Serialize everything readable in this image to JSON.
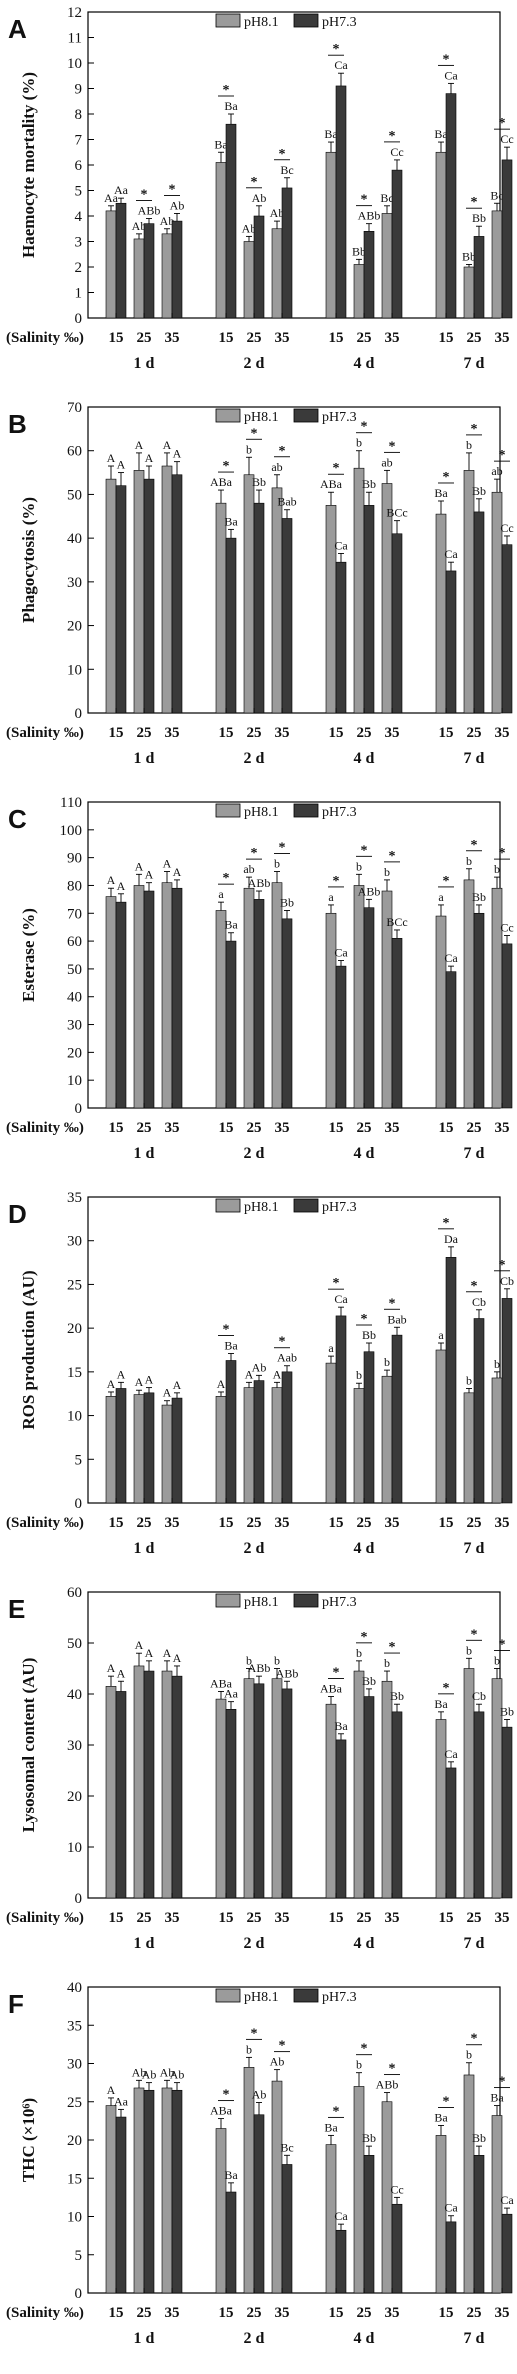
{
  "colors": {
    "ph81": "#9b9b9b",
    "ph73": "#3a3a3a"
  },
  "chart_data": [
    {
      "type": "bar",
      "panel": "A",
      "ylabel": "Haemocyte mortality (%)",
      "ylim": [
        0,
        12
      ],
      "yticks": [
        0,
        1,
        2,
        3,
        4,
        5,
        6,
        7,
        8,
        9,
        10,
        11,
        12
      ],
      "legend": [
        "pH8.1",
        "pH7.3"
      ],
      "legend_position": "top-center",
      "xlabel_prefix": "(Salinity ‰)",
      "salinities": [
        "15",
        "25",
        "35"
      ],
      "days": [
        "1 d",
        "2 d",
        "4 d",
        "7 d"
      ],
      "series": [
        {
          "name": "pH8.1",
          "values": [
            4.2,
            3.1,
            3.3,
            6.1,
            3.0,
            3.5,
            6.5,
            2.1,
            4.1,
            6.5,
            2.0,
            4.2
          ],
          "err": [
            0.2,
            0.2,
            0.2,
            0.4,
            0.2,
            0.3,
            0.4,
            0.2,
            0.3,
            0.4,
            0.1,
            0.3
          ],
          "labels": [
            "Aa",
            "Ab",
            "Ab",
            "Ba",
            "Ab",
            "Ab",
            "Ba",
            "Bb",
            "Bc",
            "Ba",
            "Bb",
            "Bc"
          ]
        },
        {
          "name": "pH7.3",
          "values": [
            4.5,
            3.7,
            3.8,
            7.6,
            4.0,
            5.1,
            9.1,
            3.4,
            5.8,
            8.8,
            3.2,
            6.2
          ],
          "err": [
            0.2,
            0.2,
            0.3,
            0.4,
            0.4,
            0.4,
            0.5,
            0.3,
            0.4,
            0.4,
            0.4,
            0.5
          ],
          "labels": [
            "Aa",
            "ABb",
            "Ab",
            "Ba",
            "Ab",
            "Bc",
            "Ca",
            "ABb",
            "Cc",
            "Ca",
            "Bb",
            "Cc"
          ]
        }
      ],
      "stars": [
        false,
        true,
        true,
        true,
        true,
        true,
        true,
        true,
        true,
        true,
        true,
        true
      ]
    },
    {
      "type": "bar",
      "panel": "B",
      "ylabel": "Phagocytosis (%)",
      "ylim": [
        0,
        70
      ],
      "yticks": [
        0,
        10,
        20,
        30,
        40,
        50,
        60,
        70
      ],
      "legend": [
        "pH8.1",
        "pH7.3"
      ],
      "legend_position": "top-center",
      "xlabel_prefix": "(Salinity ‰)",
      "salinities": [
        "15",
        "25",
        "35"
      ],
      "days": [
        "1 d",
        "2 d",
        "4 d",
        "7 d"
      ],
      "series": [
        {
          "name": "pH8.1",
          "values": [
            53.5,
            55.5,
            56.5,
            48,
            54.5,
            51.5,
            47.5,
            56,
            52.5,
            45.5,
            55.5,
            50.5
          ],
          "err": [
            3,
            4,
            3,
            3,
            4,
            3,
            3,
            4,
            3,
            3,
            4,
            3
          ],
          "labels": [
            "A",
            "A",
            "A",
            "ABa",
            "b",
            "ab",
            "ABa",
            "b",
            "ab",
            "Ba",
            "b",
            "ab"
          ]
        },
        {
          "name": "pH7.3",
          "values": [
            52,
            53.5,
            54.5,
            40,
            48,
            44.5,
            34.5,
            47.5,
            41,
            32.5,
            46,
            38.5
          ],
          "err": [
            3,
            3,
            3,
            2,
            3,
            2,
            2,
            3,
            3,
            2,
            3,
            2
          ],
          "labels": [
            "A",
            "A",
            "A",
            "Ba",
            "Bb",
            "Bab",
            "Ca",
            "Bb",
            "BCc",
            "Ca",
            "Bb",
            "Cc"
          ]
        }
      ],
      "stars": [
        false,
        false,
        false,
        true,
        true,
        true,
        true,
        true,
        true,
        true,
        true,
        true
      ]
    },
    {
      "type": "bar",
      "panel": "C",
      "ylabel": "Esterase (%)",
      "ylim": [
        0,
        110
      ],
      "yticks": [
        0,
        10,
        20,
        30,
        40,
        50,
        60,
        70,
        80,
        90,
        100,
        110
      ],
      "legend": [
        "pH8.1",
        "pH7.3"
      ],
      "legend_position": "top-center",
      "xlabel_prefix": "(Salinity ‰)",
      "salinities": [
        "15",
        "25",
        "35"
      ],
      "days": [
        "1 d",
        "2 d",
        "4 d",
        "7 d"
      ],
      "series": [
        {
          "name": "pH8.1",
          "values": [
            76,
            80,
            81,
            71,
            79,
            81,
            70,
            80,
            78,
            69,
            82,
            79
          ],
          "err": [
            3,
            4,
            4,
            3,
            4,
            4,
            3,
            4,
            4,
            4,
            4,
            4
          ],
          "labels": [
            "A",
            "A",
            "A",
            "a",
            "ab",
            "b",
            "a",
            "b",
            "b",
            "a",
            "b",
            "b"
          ]
        },
        {
          "name": "pH7.3",
          "values": [
            74,
            78,
            79,
            60,
            75,
            68,
            51,
            72,
            61,
            49,
            70,
            59
          ],
          "err": [
            3,
            3,
            3,
            3,
            3,
            3,
            2,
            3,
            3,
            2,
            3,
            3
          ],
          "labels": [
            "A",
            "A",
            "A",
            "Ba",
            "ABb",
            "Bb",
            "Ca",
            "ABb",
            "BCc",
            "Ca",
            "Bb",
            "Cc"
          ]
        }
      ],
      "stars": [
        false,
        false,
        false,
        true,
        true,
        true,
        true,
        true,
        true,
        true,
        true,
        true
      ]
    },
    {
      "type": "bar",
      "panel": "D",
      "ylabel": "ROS production (AU)",
      "ylim": [
        0,
        35
      ],
      "yticks": [
        0,
        5,
        10,
        15,
        20,
        25,
        30,
        35
      ],
      "legend": [
        "pH8.1",
        "pH7.3"
      ],
      "legend_position": "top-center",
      "xlabel_prefix": "(Salinity ‰)",
      "salinities": [
        "15",
        "25",
        "35"
      ],
      "days": [
        "1 d",
        "2 d",
        "4 d",
        "7 d"
      ],
      "series": [
        {
          "name": "pH8.1",
          "values": [
            12.2,
            12.4,
            11.2,
            12.2,
            13.2,
            13.2,
            16,
            13.1,
            14.5,
            17.5,
            12.6,
            14.3
          ],
          "err": [
            0.5,
            0.5,
            0.5,
            0.5,
            0.6,
            0.6,
            0.8,
            0.6,
            0.7,
            0.8,
            0.5,
            0.7
          ],
          "labels": [
            "A",
            "A",
            "A",
            "A",
            "A",
            "A",
            "a",
            "b",
            "b",
            "a",
            "b",
            "b"
          ]
        },
        {
          "name": "pH7.3",
          "values": [
            13.1,
            12.6,
            12.0,
            16.3,
            14.0,
            15.0,
            21.4,
            17.3,
            19.2,
            28.1,
            21.1,
            23.4
          ],
          "err": [
            0.7,
            0.6,
            0.6,
            0.8,
            0.6,
            0.7,
            1.0,
            1.0,
            0.9,
            1.2,
            1.0,
            1.1
          ],
          "labels": [
            "A",
            "A",
            "A",
            "Ba",
            "Ab",
            "Aab",
            "Ca",
            "Bb",
            "Bab",
            "Da",
            "Cb",
            "Cb"
          ]
        }
      ],
      "stars": [
        false,
        false,
        false,
        true,
        false,
        true,
        true,
        true,
        true,
        true,
        true,
        true
      ]
    },
    {
      "type": "bar",
      "panel": "E",
      "ylabel": "Lysosomal content (AU)",
      "ylim": [
        0,
        60
      ],
      "yticks": [
        0,
        10,
        20,
        30,
        40,
        50,
        60
      ],
      "legend": [
        "pH8.1",
        "pH7.3"
      ],
      "legend_position": "top-center",
      "xlabel_prefix": "(Salinity ‰)",
      "salinities": [
        "15",
        "25",
        "35"
      ],
      "days": [
        "1 d",
        "2 d",
        "4 d",
        "7 d"
      ],
      "series": [
        {
          "name": "pH8.1",
          "values": [
            41.5,
            45.5,
            44.5,
            39,
            43,
            43,
            38,
            44.5,
            42.5,
            35,
            45,
            43
          ],
          "err": [
            2,
            2.5,
            2,
            1.5,
            2,
            2,
            1.5,
            2,
            2,
            1.5,
            2,
            2
          ],
          "labels": [
            "A",
            "A",
            "A",
            "ABa",
            "b",
            "b",
            "ABa",
            "b",
            "b",
            "Ba",
            "b",
            "b"
          ]
        },
        {
          "name": "pH7.3",
          "values": [
            40.5,
            44.5,
            43.5,
            37,
            42,
            41,
            31,
            39.5,
            36.5,
            25.5,
            36.5,
            33.5
          ],
          "err": [
            2,
            2,
            2,
            1.5,
            1.5,
            1.5,
            1.2,
            1.5,
            1.5,
            1.2,
            1.5,
            1.5
          ],
          "labels": [
            "A",
            "A",
            "A",
            "Aa",
            "ABb",
            "ABb",
            "Ba",
            "Bb",
            "Bb",
            "Ca",
            "Cb",
            "Bb"
          ]
        }
      ],
      "stars": [
        false,
        false,
        false,
        false,
        false,
        false,
        true,
        true,
        true,
        true,
        true,
        true
      ]
    },
    {
      "type": "bar",
      "panel": "F",
      "ylabel": "THC (×10⁶)",
      "ylim": [
        0,
        40
      ],
      "yticks": [
        0,
        5,
        10,
        15,
        20,
        25,
        30,
        35,
        40
      ],
      "legend": [
        "pH8.1",
        "pH7.3"
      ],
      "legend_position": "top-center",
      "xlabel_prefix": "(Salinity ‰)",
      "salinities": [
        "15",
        "25",
        "35"
      ],
      "days": [
        "1 d",
        "2 d",
        "4 d",
        "7 d"
      ],
      "series": [
        {
          "name": "pH8.1",
          "values": [
            24.5,
            26.8,
            26.8,
            21.5,
            29.5,
            27.7,
            19.4,
            27.0,
            25.0,
            20.6,
            28.5,
            23.2
          ],
          "err": [
            1,
            1,
            1,
            1.3,
            1.3,
            1.5,
            1.2,
            1.8,
            1.2,
            1.3,
            1.6,
            1.3
          ],
          "labels": [
            "A",
            "Ab",
            "Ab",
            "ABa",
            "b",
            "Ab",
            "Ba",
            "b",
            "ABb",
            "Ba",
            "b",
            "Ba"
          ]
        },
        {
          "name": "pH7.3",
          "values": [
            23.0,
            26.5,
            26.5,
            13.2,
            23.3,
            16.8,
            8.2,
            18.0,
            11.6,
            9.3,
            18.0,
            10.3
          ],
          "err": [
            1,
            1,
            1,
            1.2,
            1.6,
            1.2,
            0.8,
            1.2,
            0.9,
            0.8,
            1.2,
            0.8
          ],
          "labels": [
            "Aa",
            "Ab",
            "Ab",
            "Ba",
            "Ab",
            "Bc",
            "Ca",
            "Bb",
            "Cc",
            "Ca",
            "Bb",
            "Ca"
          ]
        }
      ],
      "stars": [
        false,
        false,
        false,
        true,
        true,
        true,
        true,
        true,
        true,
        true,
        true,
        true
      ]
    }
  ]
}
